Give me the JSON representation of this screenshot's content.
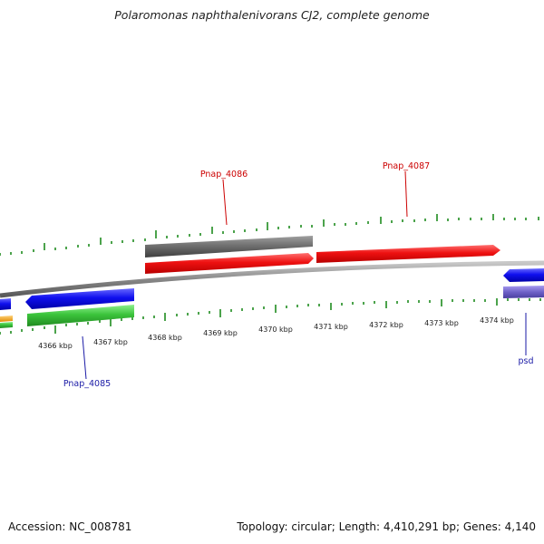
{
  "title": "Polaromonas naphthalenivorans CJ2, complete genome",
  "footer": {
    "accession": "Accession: NC_008781",
    "summary": "Topology: circular; Length: 4,410,291 bp; Genes: 4,140"
  },
  "scale": {
    "unit": "kbp",
    "labels": [
      "4366 kbp",
      "4367 kbp",
      "4368 kbp",
      "4369 kbp",
      "4370 kbp",
      "4371 kbp",
      "4372 kbp",
      "4373 kbp",
      "4374 kbp"
    ]
  },
  "genes": {
    "forward_labels": [
      "Pnap_4086",
      "Pnap_4087"
    ],
    "reverse_labels": [
      "Pnap_4085",
      "psd"
    ]
  },
  "colors": {
    "forward_gene": "#e41a1c",
    "forward_gene_label": "#cc0000",
    "reverse_gene": "#1515e0",
    "reverse_gene_label": "#1a1aa6",
    "hit_grey": "#666666",
    "hit_green": "#3cc43c",
    "hit_orange": "#f5a623",
    "hit_purple": "#6f62c8",
    "backbone": "#8a8a8a",
    "ticks": "#1f8c1f"
  }
}
